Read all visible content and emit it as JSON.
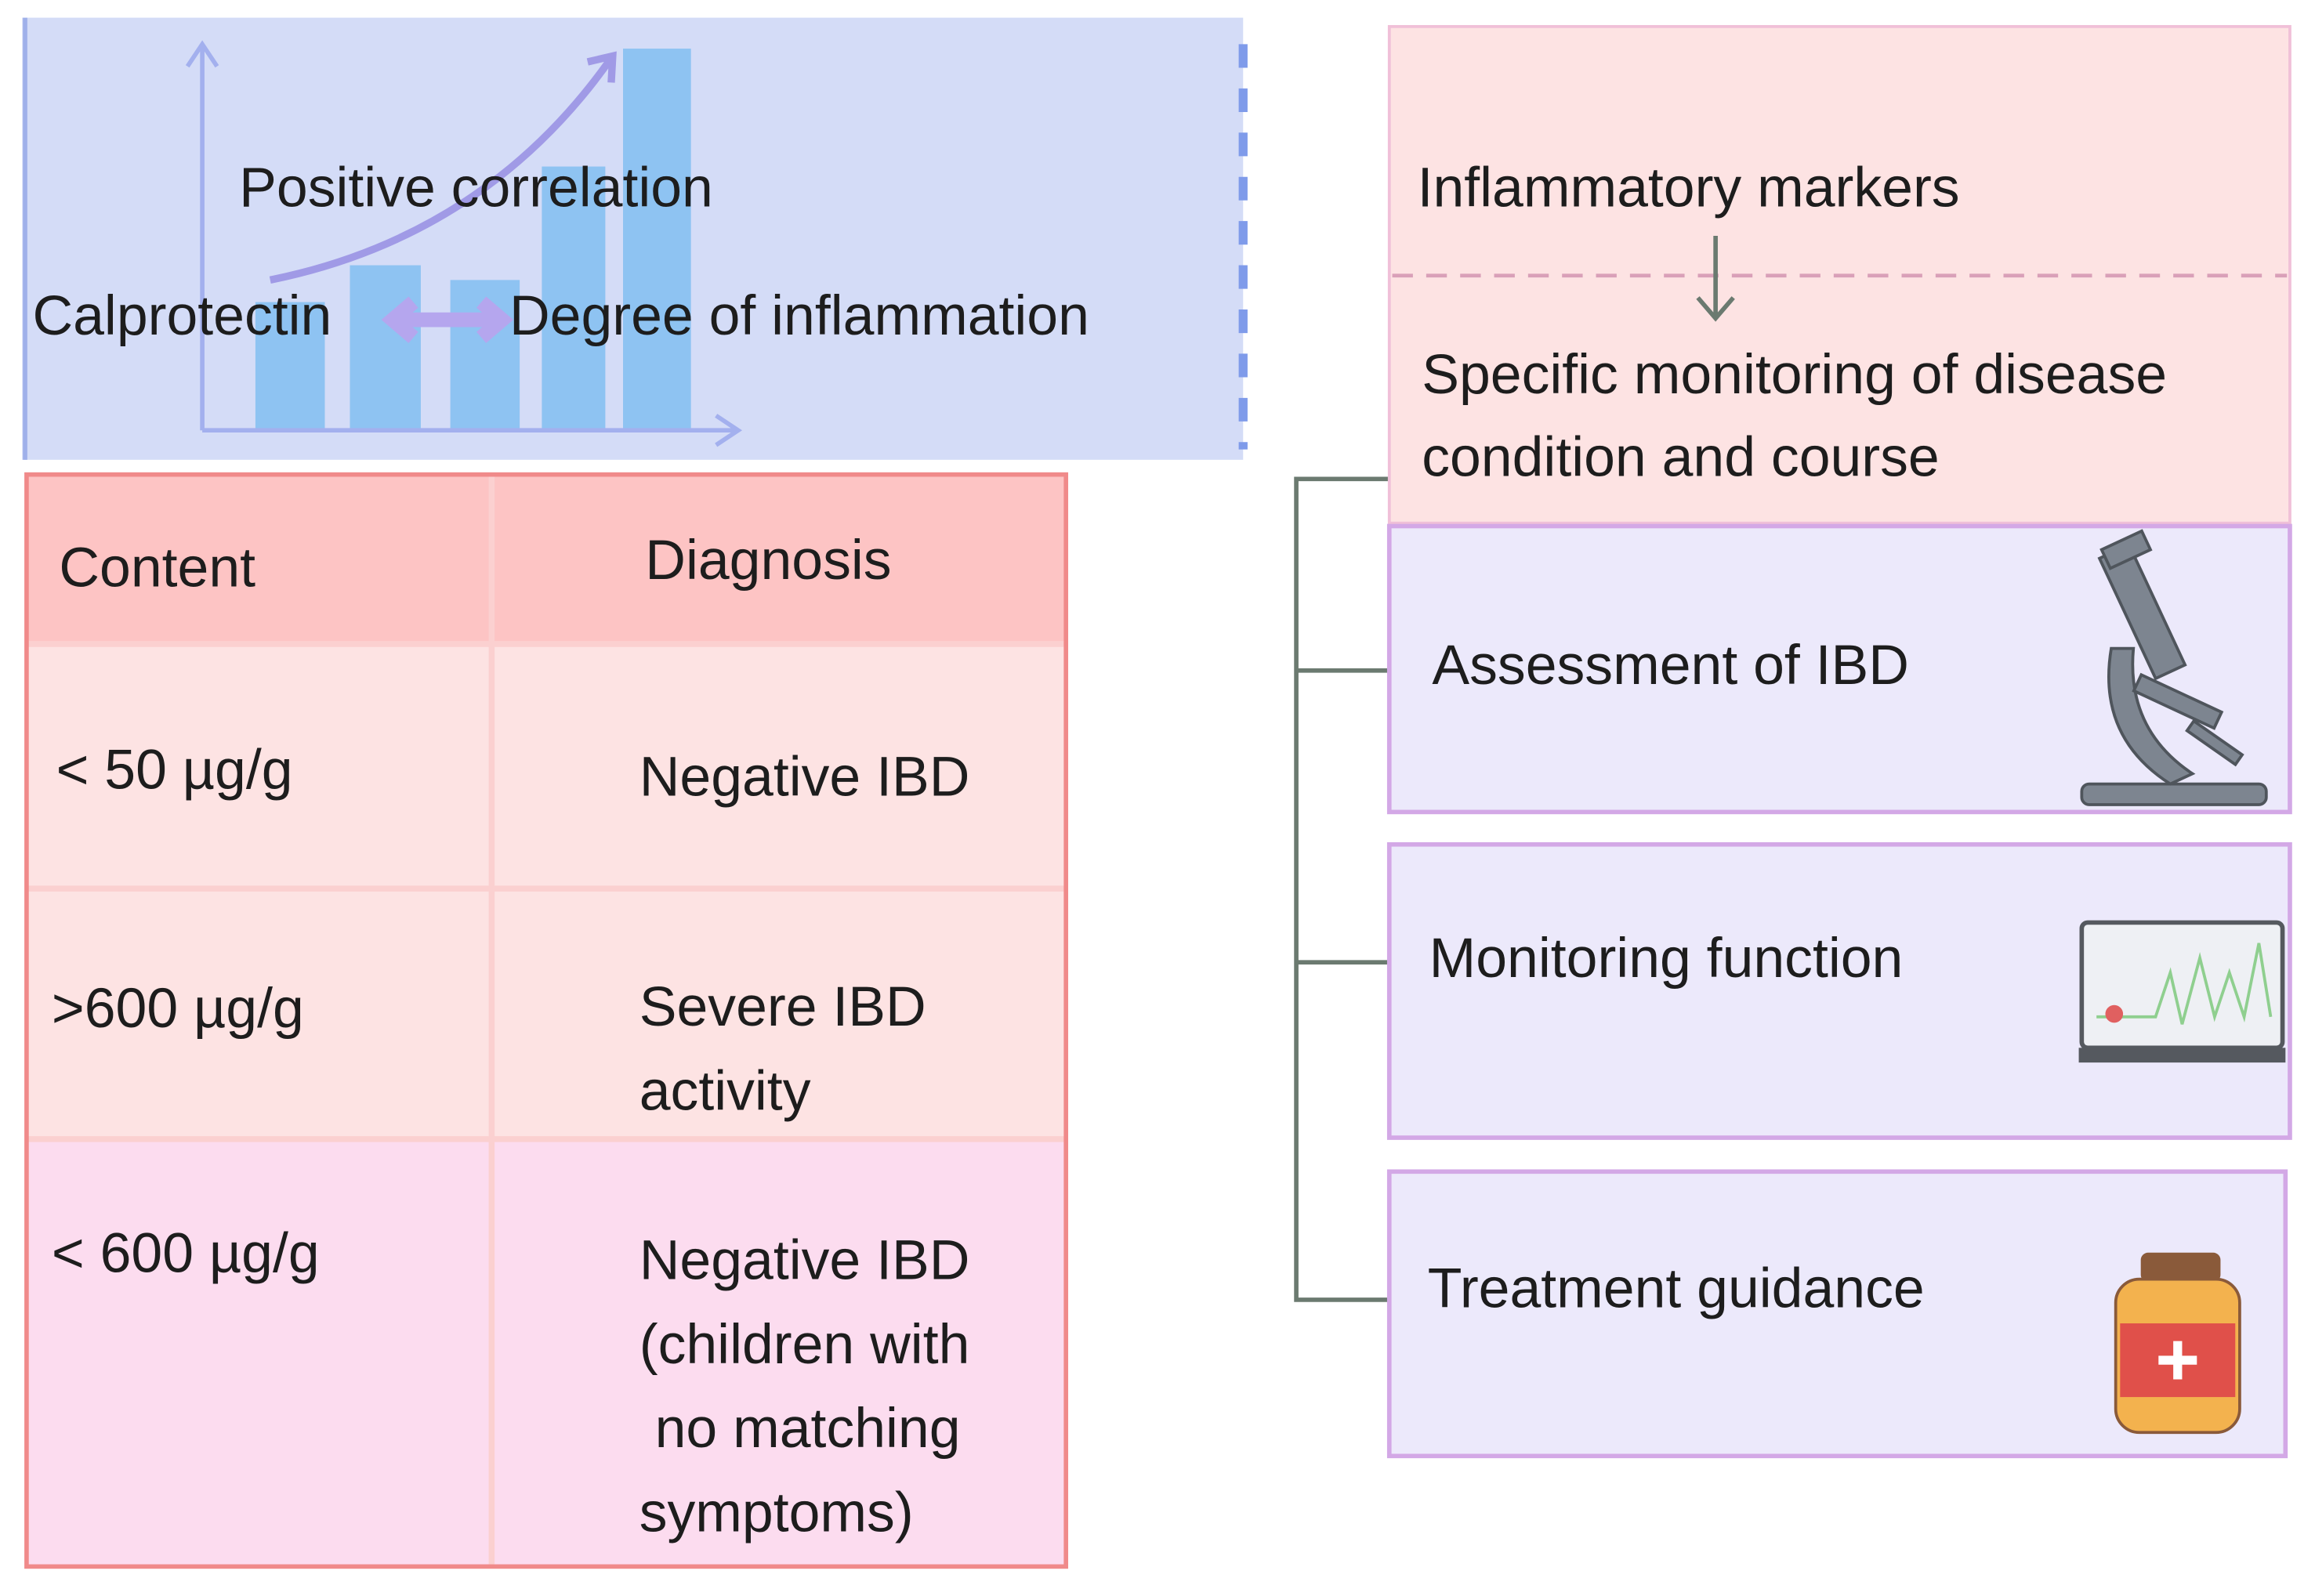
{
  "correlation": {
    "label": "Positive correlation",
    "left": "Calprotectin",
    "right": "Degree of inflammation"
  },
  "table": {
    "header": [
      "Content",
      "Diagnosis"
    ],
    "rows": [
      [
        [
          "< 50 µg/g"
        ],
        [
          "Negative IBD"
        ]
      ],
      [
        [
          ">600 µg/g"
        ],
        [
          "Severe IBD",
          "activity"
        ]
      ],
      [
        [
          "< 600 µg/g"
        ],
        [
          "Negative IBD",
          "(children with",
          " no matching",
          "symptoms)"
        ]
      ]
    ]
  },
  "markers": {
    "title": "Inflammatory markers",
    "subtitle": [
      "Specific monitoring of disease",
      "condition and course"
    ],
    "items": [
      "Assessment of IBD",
      "Monitoring function",
      "Treatment guidance"
    ]
  }
}
